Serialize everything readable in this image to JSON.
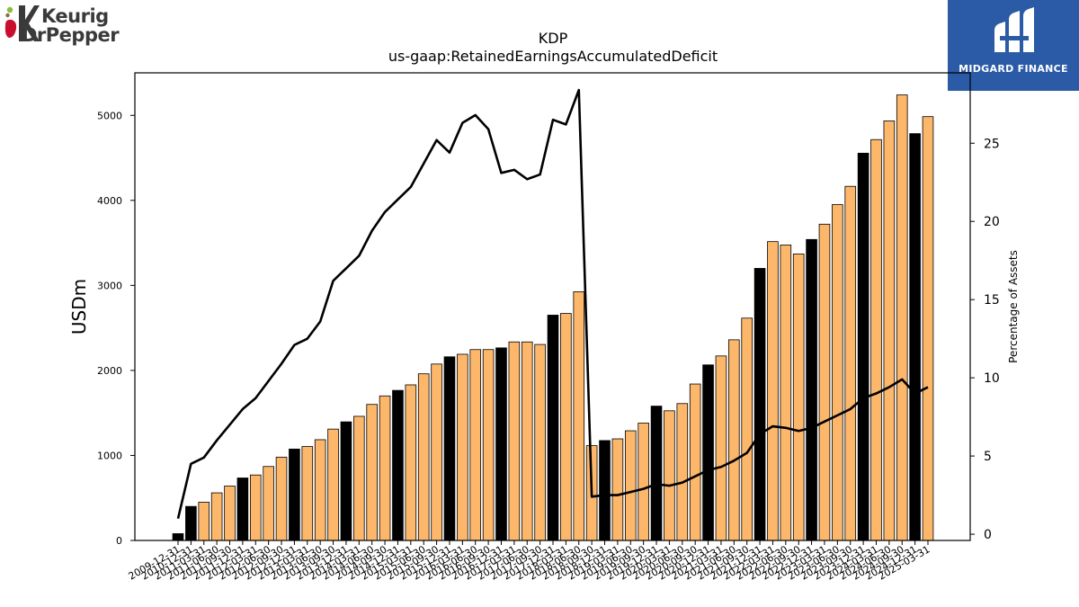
{
  "brand": {
    "company_line1": "Keurig",
    "company_line2": "DrPepper",
    "sponsor": "MIDGARD FINANCE"
  },
  "colors": {
    "bar_annual": "#000000",
    "bar_quarter": "#fdb76b",
    "line": "#000000",
    "badge": "#2b5aa6",
    "logo_green": "#8bbd3f",
    "logo_red": "#c8102e"
  },
  "chart_data": {
    "type": "bar",
    "title": "KDP",
    "subtitle": "us-gaap:RetainedEarningsAccumulatedDeficit",
    "ylabel": "USDm",
    "y2label": "Percentage of Assets",
    "ylim": [
      0,
      5500
    ],
    "y2lim": [
      -0.4,
      29.5
    ],
    "yticks": [
      0,
      1000,
      2000,
      3000,
      4000,
      5000
    ],
    "y2ticks": [
      0,
      5,
      10,
      15,
      20,
      25
    ],
    "categories": [
      "2009-12-31",
      "2010-12-31",
      "2011-03-31",
      "2011-06-30",
      "2011-09-30",
      "2011-12-31",
      "2012-03-31",
      "2012-06-30",
      "2012-09-30",
      "2012-12-31",
      "2013-03-31",
      "2013-06-30",
      "2013-09-30",
      "2013-12-31",
      "2014-03-31",
      "2014-06-30",
      "2014-09-30",
      "2014-12-31",
      "2015-03-31",
      "2015-06-30",
      "2015-09-30",
      "2015-12-31",
      "2016-03-31",
      "2016-06-30",
      "2016-09-30",
      "2016-12-31",
      "2017-03-31",
      "2017-06-30",
      "2017-09-30",
      "2017-12-31",
      "2018-03-31",
      "2018-06-30",
      "2018-09-30",
      "2018-12-31",
      "2019-03-31",
      "2019-06-30",
      "2019-09-30",
      "2019-12-31",
      "2020-03-31",
      "2020-06-30",
      "2020-09-30",
      "2020-12-31",
      "2021-03-31",
      "2021-06-30",
      "2021-09-30",
      "2021-12-31",
      "2022-03-31",
      "2022-06-30",
      "2022-09-30",
      "2022-12-31",
      "2023-03-31",
      "2023-06-30",
      "2023-09-30",
      "2023-12-31",
      "2024-03-31",
      "2024-06-30",
      "2024-09-30",
      "2024-12-31",
      "2025-03-31"
    ],
    "series": [
      {
        "values": [
          80,
          400,
          450,
          560,
          640,
          735,
          770,
          870,
          980,
          1075,
          1105,
          1185,
          1310,
          1395,
          1460,
          1600,
          1700,
          1765,
          1830,
          1960,
          2075,
          2160,
          2190,
          2245,
          2245,
          2265,
          2335,
          2335,
          2305,
          2650,
          2670,
          2925,
          1115,
          1175,
          1195,
          1290,
          1380,
          1580,
          1525,
          1610,
          1840,
          2065,
          2170,
          2360,
          2615,
          3200,
          3515,
          3475,
          3370,
          3540,
          3720,
          3950,
          4165,
          4555,
          4715,
          4935,
          5240,
          4785,
          4985
        ],
        "kind": [
          "annual",
          "annual",
          "quarter",
          "quarter",
          "quarter",
          "annual",
          "quarter",
          "quarter",
          "quarter",
          "annual",
          "quarter",
          "quarter",
          "quarter",
          "annual",
          "quarter",
          "quarter",
          "quarter",
          "annual",
          "quarter",
          "quarter",
          "quarter",
          "annual",
          "quarter",
          "quarter",
          "quarter",
          "annual",
          "quarter",
          "quarter",
          "quarter",
          "annual",
          "quarter",
          "quarter",
          "quarter",
          "annual",
          "quarter",
          "quarter",
          "quarter",
          "annual",
          "quarter",
          "quarter",
          "quarter",
          "annual",
          "quarter",
          "quarter",
          "quarter",
          "annual",
          "quarter",
          "quarter",
          "quarter",
          "annual",
          "quarter",
          "quarter",
          "quarter",
          "annual",
          "quarter",
          "quarter",
          "quarter",
          "annual",
          "quarter"
        ]
      },
      {
        "axis": "right",
        "type": "line",
        "values": [
          1.0,
          4.5,
          4.9,
          6.0,
          7.0,
          8.0,
          8.7,
          9.8,
          10.9,
          12.1,
          12.5,
          13.6,
          16.2,
          17.0,
          17.8,
          19.4,
          20.6,
          21.4,
          22.2,
          23.7,
          25.2,
          24.4,
          26.3,
          26.8,
          25.9,
          23.1,
          23.3,
          22.7,
          23.0,
          26.5,
          26.2,
          28.4,
          2.4,
          2.5,
          2.5,
          2.7,
          2.9,
          3.2,
          3.1,
          3.3,
          3.7,
          4.1,
          4.3,
          4.7,
          5.2,
          6.4,
          6.9,
          6.8,
          6.6,
          6.8,
          7.2,
          7.6,
          8.0,
          8.7,
          9.0,
          9.4,
          9.9,
          9.0,
          9.4
        ]
      }
    ]
  }
}
